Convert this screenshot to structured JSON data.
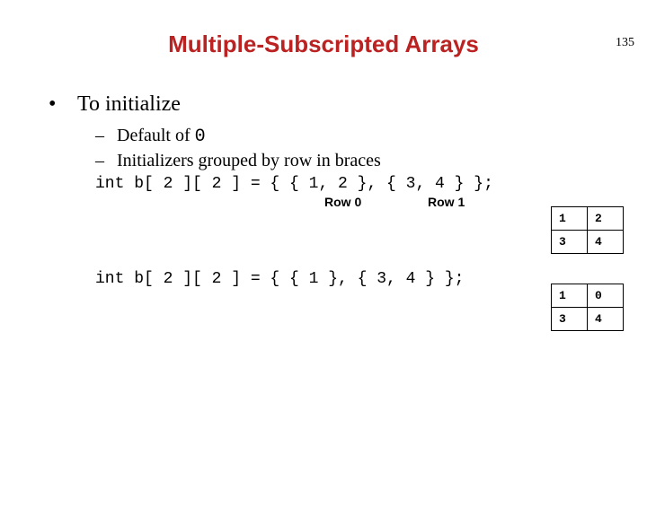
{
  "page_number": "135",
  "title": "Multiple-Subscripted Arrays",
  "title_color": "#bb2222",
  "bullet": {
    "marker": "•",
    "text": "To initialize"
  },
  "sub_bullets": [
    {
      "marker": "–",
      "text_before": "Default of ",
      "code": "0",
      "text_after": ""
    },
    {
      "marker": "–",
      "text_before": "Initializers grouped by row in braces",
      "code": "",
      "text_after": ""
    }
  ],
  "code1": "int b[ 2 ][ 2 ] = { { 1, 2 }, { 3, 4 } };",
  "row_labels": {
    "r0": "Row 0",
    "r1": "Row 1"
  },
  "code2": "int b[ 2 ][ 2 ] = { { 1 }, { 3, 4 } };",
  "table1": {
    "rows": [
      [
        "1",
        "2"
      ],
      [
        "3",
        "4"
      ]
    ]
  },
  "table2": {
    "rows": [
      [
        "1",
        "0"
      ],
      [
        "3",
        "4"
      ]
    ]
  }
}
